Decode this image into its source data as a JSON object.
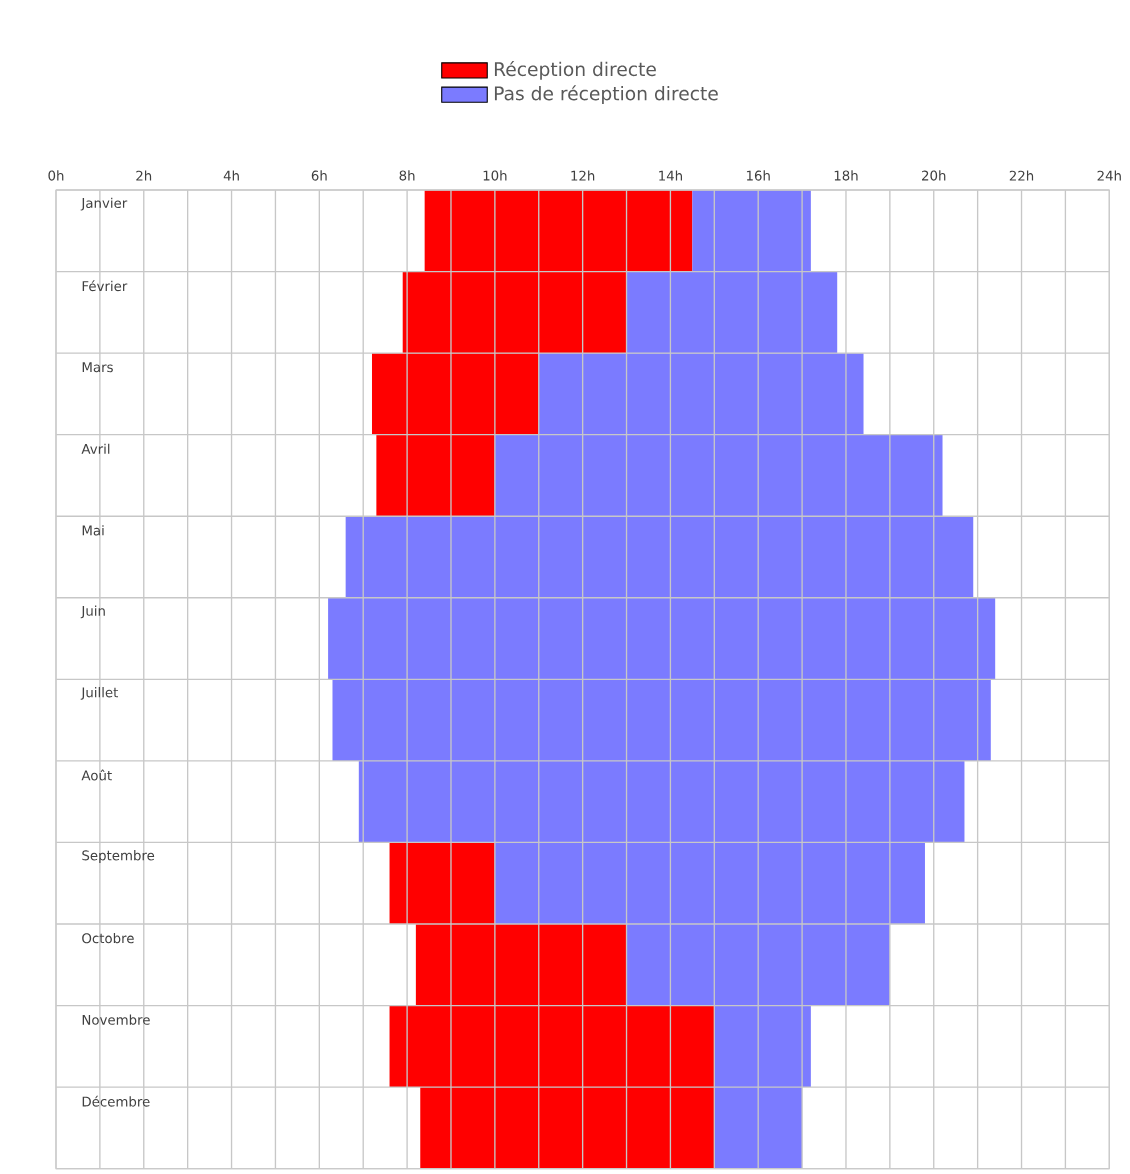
{
  "chart_data": {
    "type": "bar",
    "orientation": "horizontal",
    "categories": [
      "Janvier",
      "Février",
      "Mars",
      "Avril",
      "Mai",
      "Juin",
      "Juillet",
      "Août",
      "Septembre",
      "Octobre",
      "Novembre",
      "Décembre"
    ],
    "series": [
      {
        "name": "Réception directe",
        "color": "#ff0000",
        "base": [
          8.4,
          7.9,
          7.2,
          7.3,
          null,
          null,
          null,
          null,
          7.6,
          8.2,
          7.6,
          8.3
        ],
        "values": [
          6.1,
          5.1,
          3.8,
          2.7,
          null,
          null,
          null,
          null,
          2.4,
          4.8,
          7.4,
          6.7
        ]
      },
      {
        "name": "Pas de réception directe",
        "color": "#7b7bff",
        "base": [
          14.5,
          13.0,
          11.0,
          10.0,
          6.6,
          6.2,
          6.3,
          6.9,
          10.0,
          13.0,
          15.0,
          15.0
        ],
        "values": [
          2.7,
          4.8,
          7.4,
          10.2,
          14.3,
          15.2,
          15.0,
          13.8,
          9.8,
          6.0,
          2.2,
          2.0
        ]
      }
    ],
    "xlim": [
      0,
      24
    ],
    "xticks": [
      {
        "value": 0,
        "label": "0h"
      },
      {
        "value": 1,
        "label": null
      },
      {
        "value": 2,
        "label": "2h"
      },
      {
        "value": 3,
        "label": null
      },
      {
        "value": 4,
        "label": "4h"
      },
      {
        "value": 5,
        "label": null
      },
      {
        "value": 6,
        "label": "6h"
      },
      {
        "value": 7,
        "label": null
      },
      {
        "value": 8,
        "label": "8h"
      },
      {
        "value": 9,
        "label": null
      },
      {
        "value": 10,
        "label": "10h"
      },
      {
        "value": 11,
        "label": null
      },
      {
        "value": 12,
        "label": "12h"
      },
      {
        "value": 13,
        "label": null
      },
      {
        "value": 14,
        "label": "14h"
      },
      {
        "value": 15,
        "label": null
      },
      {
        "value": 16,
        "label": "16h"
      },
      {
        "value": 17,
        "label": null
      },
      {
        "value": 18,
        "label": "18h"
      },
      {
        "value": 19,
        "label": null
      },
      {
        "value": 20,
        "label": "20h"
      },
      {
        "value": 21,
        "label": null
      },
      {
        "value": 22,
        "label": "22h"
      },
      {
        "value": 23,
        "label": null
      },
      {
        "value": 24,
        "label": "24h"
      }
    ],
    "grid": true,
    "legend": "top"
  }
}
